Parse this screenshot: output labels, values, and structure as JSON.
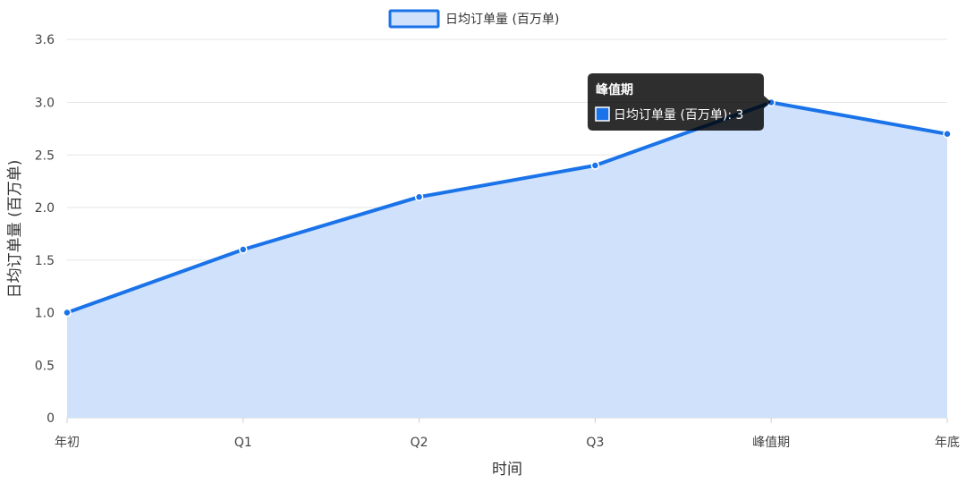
{
  "chart_data": {
    "type": "area",
    "categories": [
      "年初",
      "Q1",
      "Q2",
      "Q3",
      "峰值期",
      "年底"
    ],
    "series": [
      {
        "name": "日均订单量 (百万单)",
        "values": [
          1.0,
          1.6,
          2.1,
          2.4,
          3.0,
          2.7
        ]
      }
    ],
    "xlabel": "时间",
    "ylabel": "日均订单量 (百万单)",
    "ylim": [
      0,
      3.6
    ],
    "yticks": [
      0,
      0.5,
      1.0,
      1.5,
      2.0,
      2.5,
      3.0,
      3.6
    ],
    "ytick_labels": [
      "0",
      "0.5",
      "1.0",
      "1.5",
      "2.0",
      "2.5",
      "3.0",
      "3.6"
    ],
    "grid": true,
    "legend": {
      "position": "top-center"
    },
    "colors": {
      "line": "#1a73e8",
      "fill": "#cfe1fb",
      "grid": "#e6e6e6"
    },
    "tooltip": {
      "title": "峰值期",
      "label": "日均订单量 (百万单): 3"
    }
  }
}
